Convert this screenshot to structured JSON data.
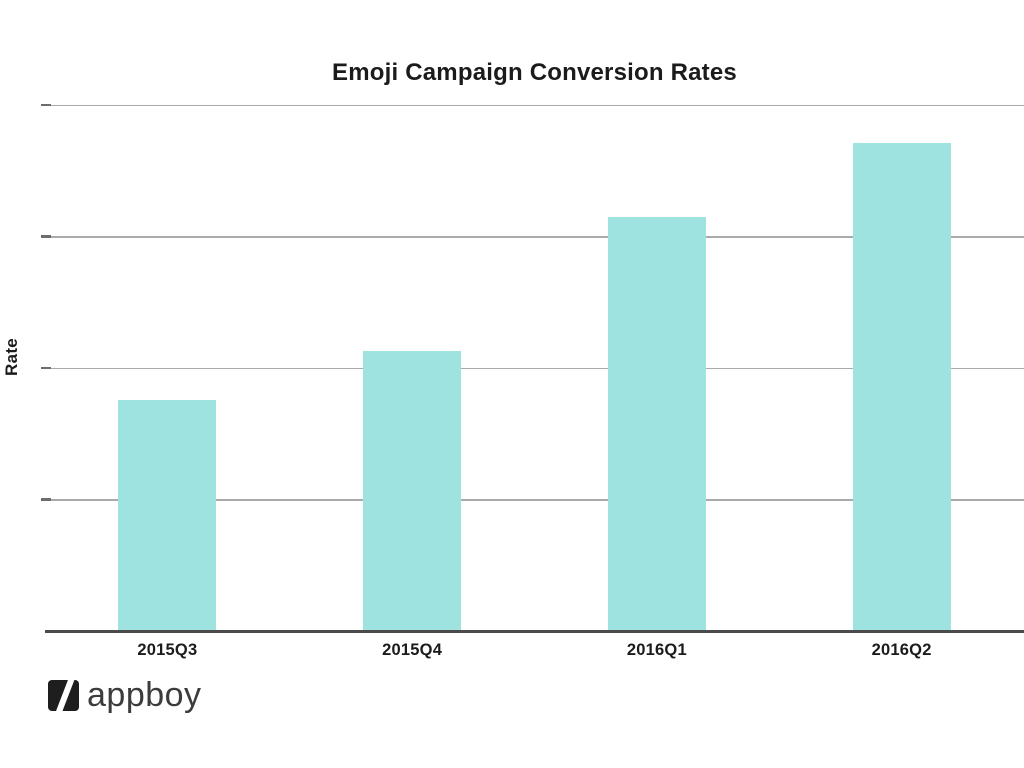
{
  "chart_data": {
    "type": "bar",
    "title": "Emoji Campaign Conversion Rates",
    "xlabel": "",
    "ylabel": "Rate",
    "categories": [
      "2015Q3",
      "2015Q4",
      "2016Q1",
      "2016Q2"
    ],
    "values": [
      1.76,
      2.13,
      3.15,
      3.71
    ],
    "ylim": [
      0,
      4
    ],
    "gridline_step": 1,
    "y_tick_labels": "none",
    "grid": true,
    "legend": false,
    "bar_color": "#9EE3DF",
    "bar_width_fraction": 0.4
  },
  "footer": {
    "logo_text": "appboy"
  }
}
